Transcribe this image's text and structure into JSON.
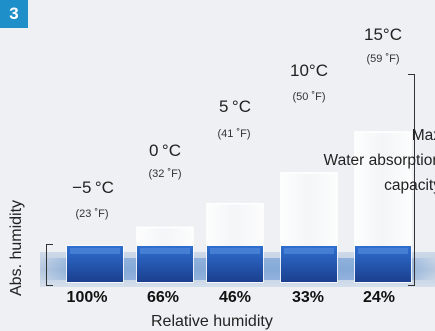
{
  "figure_number": "3",
  "labels": {
    "x_axis": "Relative humidity",
    "y_axis": "Abs. humidity",
    "max_capacity_lines": [
      "Max",
      "Water absorption",
      "capacity"
    ]
  },
  "columns": [
    {
      "temp_c": "−5 °C",
      "temp_f": "(23 ˚F)",
      "rel_humidity": "100%",
      "capacity_fraction": 1.0
    },
    {
      "temp_c": "0 °C",
      "temp_f": "(32 ˚F)",
      "rel_humidity": "66%",
      "capacity_fraction": 0.66
    },
    {
      "temp_c": "5 °C",
      "temp_f": "(41 ˚F)",
      "rel_humidity": "46%",
      "capacity_fraction": 0.46
    },
    {
      "temp_c": "10°C",
      "temp_f": "(50 ˚F)",
      "rel_humidity": "33%",
      "capacity_fraction": 0.33
    },
    {
      "temp_c": "15°C",
      "temp_f": "(59 ˚F)",
      "rel_humidity": "24%",
      "capacity_fraction": 0.24
    }
  ],
  "colors": {
    "badge": "#1f8fc9",
    "water_dark": "#1b3f8f",
    "water_light": "#2f6fd0",
    "glass": "#ffffff"
  }
}
